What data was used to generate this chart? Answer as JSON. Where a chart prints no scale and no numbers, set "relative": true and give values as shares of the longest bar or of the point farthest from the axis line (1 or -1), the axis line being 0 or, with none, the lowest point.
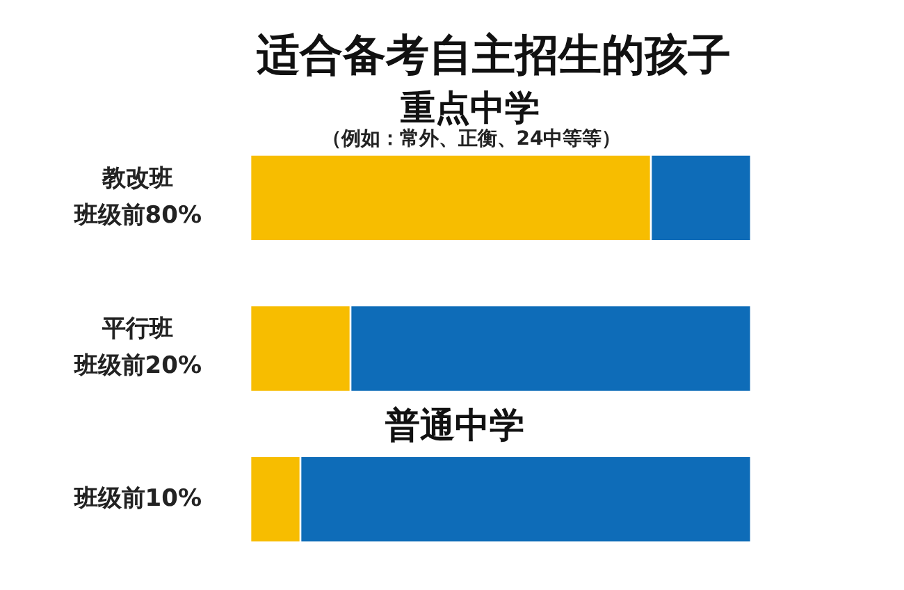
{
  "chart_data": {
    "type": "bar",
    "title": "适合备考自主招生的孩子",
    "subtitle": "重点中学",
    "annotations": [
      "（例如：常外、正衡、24中等等）",
      "普通中学"
    ],
    "categories": [
      "教改班班级前80%",
      "平行班班级前20%",
      "班级前10%"
    ],
    "series": [
      {
        "color": "#f7bd00",
        "values": [
          0.8,
          0.2,
          0.1
        ]
      },
      {
        "color": "#0e6cb8",
        "values": [
          0.2,
          0.8,
          0.9
        ]
      }
    ],
    "orientation": "horizontal",
    "stacked": true,
    "relative": true,
    "legend": false,
    "grid": false
  }
}
